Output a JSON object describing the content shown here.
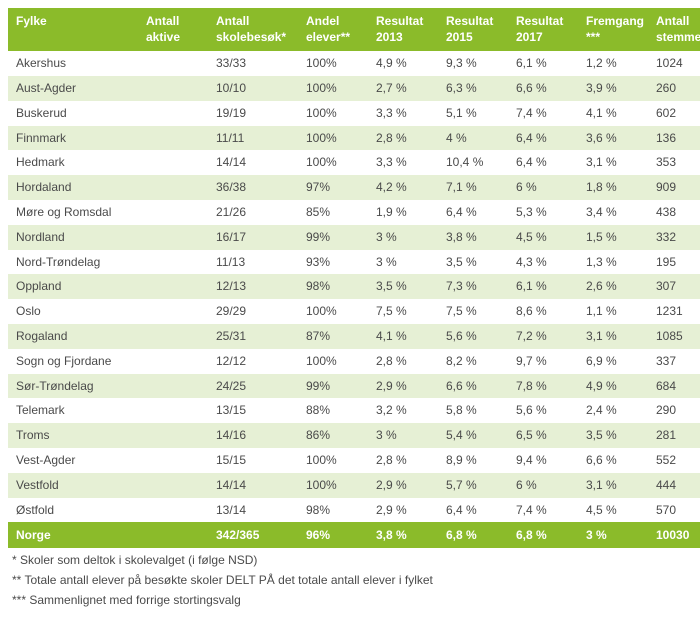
{
  "table": {
    "columns": [
      {
        "line1": "Fylke",
        "line2": ""
      },
      {
        "line1": "Antall",
        "line2": "aktive"
      },
      {
        "line1": "Antall",
        "line2": "skolebesøk*"
      },
      {
        "line1": "Andel",
        "line2": "elever**"
      },
      {
        "line1": "Resultat",
        "line2": "2013"
      },
      {
        "line1": "Resultat",
        "line2": "2015"
      },
      {
        "line1": "Resultat",
        "line2": "2017"
      },
      {
        "line1": "Fremgang",
        "line2": "***"
      },
      {
        "line1": "Antall",
        "line2": "stemmer"
      }
    ],
    "rows": [
      [
        "Akershus",
        "",
        "33/33",
        "100%",
        "4,9 %",
        "9,3 %",
        "6,1 %",
        "1,2 %",
        "1024"
      ],
      [
        "Aust-Agder",
        "",
        "10/10",
        "100%",
        "2,7 %",
        "6,3 %",
        "6,6 %",
        "3,9 %",
        "260"
      ],
      [
        "Buskerud",
        "",
        "19/19",
        "100%",
        "3,3 %",
        "5,1 %",
        "7,4 %",
        "4,1 %",
        "602"
      ],
      [
        "Finnmark",
        "",
        "11/11",
        "100%",
        "2,8 %",
        "4 %",
        "6,4 %",
        "3,6 %",
        "136"
      ],
      [
        "Hedmark",
        "",
        "14/14",
        "100%",
        "3,3 %",
        "10,4 %",
        "6,4 %",
        "3,1 %",
        "353"
      ],
      [
        "Hordaland",
        "",
        "36/38",
        "97%",
        "4,2 %",
        "7,1 %",
        "6 %",
        "1,8 %",
        "909"
      ],
      [
        "Møre og Romsdal",
        "",
        "21/26",
        "85%",
        "1,9 %",
        "6,4 %",
        "5,3 %",
        "3,4 %",
        "438"
      ],
      [
        "Nordland",
        "",
        "16/17",
        "99%",
        "3 %",
        "3,8 %",
        "4,5 %",
        "1,5 %",
        "332"
      ],
      [
        "Nord-Trøndelag",
        "",
        "11/13",
        "93%",
        "3 %",
        "3,5 %",
        "4,3 %",
        "1,3 %",
        "195"
      ],
      [
        "Oppland",
        "",
        "12/13",
        "98%",
        "3,5 %",
        "7,3 %",
        "6,1 %",
        "2,6 %",
        "307"
      ],
      [
        "Oslo",
        "",
        "29/29",
        "100%",
        "7,5 %",
        "7,5 %",
        "8,6 %",
        "1,1 %",
        "1231"
      ],
      [
        "Rogaland",
        "",
        "25/31",
        "87%",
        "4,1 %",
        "5,6 %",
        "7,2 %",
        "3,1 %",
        "1085"
      ],
      [
        "Sogn og Fjordane",
        "",
        "12/12",
        "100%",
        "2,8 %",
        "8,2 %",
        "9,7 %",
        "6,9 %",
        "337"
      ],
      [
        "Sør-Trøndelag",
        "",
        "24/25",
        "99%",
        "2,9 %",
        "6,6 %",
        "7,8 %",
        "4,9 %",
        "684"
      ],
      [
        "Telemark",
        "",
        "13/15",
        "88%",
        "3,2 %",
        "5,8 %",
        "5,6 %",
        "2,4 %",
        "290"
      ],
      [
        "Troms",
        "",
        "14/16",
        "86%",
        "3 %",
        "5,4 %",
        "6,5 %",
        "3,5 %",
        "281"
      ],
      [
        "Vest-Agder",
        "",
        "15/15",
        "100%",
        "2,8 %",
        "8,9 %",
        "9,4 %",
        "6,6 %",
        "552"
      ],
      [
        "Vestfold",
        "",
        "14/14",
        "100%",
        "2,9 %",
        "5,7 %",
        "6 %",
        "3,1 %",
        "444"
      ],
      [
        "Østfold",
        "",
        "13/14",
        "98%",
        "2,9 %",
        "6,4 %",
        "7,4 %",
        "4,5 %",
        "570"
      ]
    ],
    "total": [
      "Norge",
      "",
      "342/365",
      "96%",
      "3,8 %",
      "6,8 %",
      "6,8 %",
      "3 %",
      "10030"
    ],
    "header_bg": "#8bbb2a",
    "header_fg": "#ffffff",
    "row_even_bg": "#ffffff",
    "row_odd_bg": "#e6f0d5",
    "text_color": "#4a4a4a",
    "fontsize_header": 12,
    "fontsize_body": 12
  },
  "footnotes": [
    "* Skoler som deltok i skolevalget (i følge NSD)",
    "** Totale antall elever på besøkte skoler DELT PÅ det totale antall elever i fylket",
    "*** Sammenlignet med forrige stortingsvalg"
  ]
}
